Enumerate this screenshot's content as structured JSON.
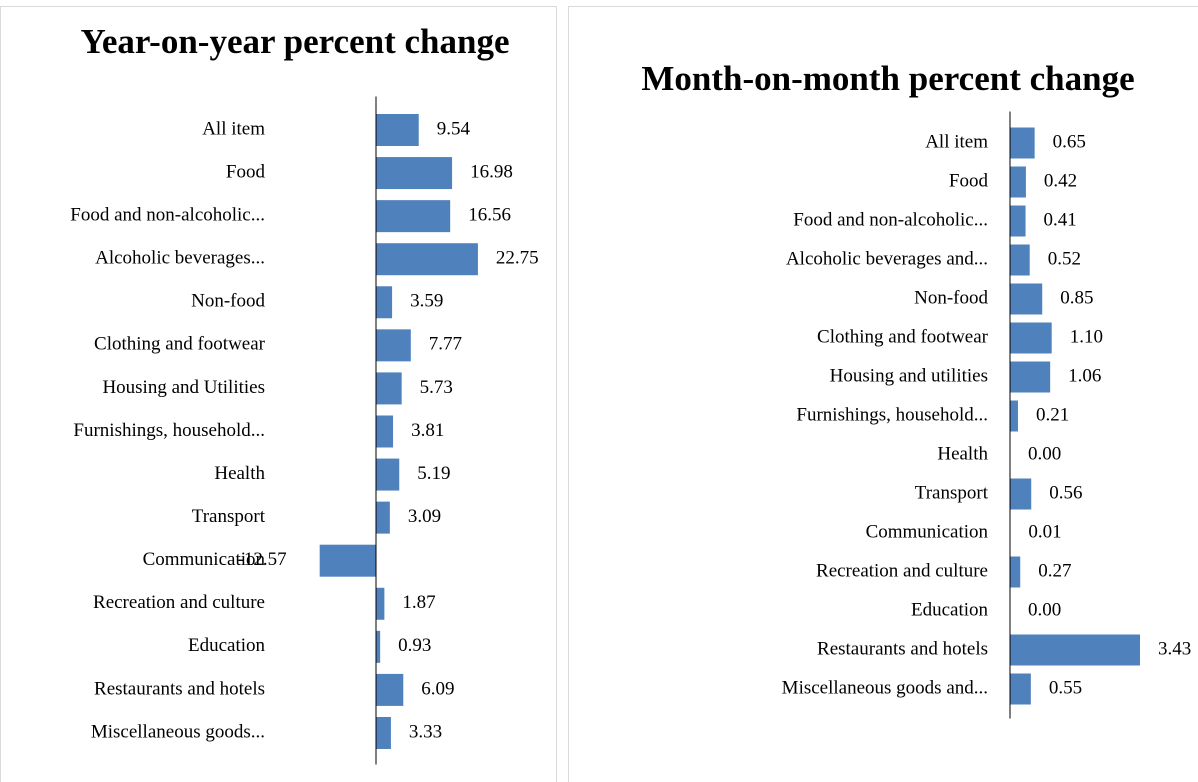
{
  "chart_data": [
    {
      "type": "hbar",
      "title": "Year-on-year percent change",
      "categories": [
        "All item",
        "Food",
        "Food and non-alcoholic...",
        "Alcoholic beverages...",
        "Non-food",
        "Clothing and footwear",
        "Housing and Utilities",
        "Furnishings, household...",
        "Health",
        "Transport",
        "Communication",
        "Recreation and culture",
        "Education",
        "Restaurants and hotels",
        "Miscellaneous goods..."
      ],
      "values": [
        9.54,
        16.98,
        16.56,
        22.75,
        3.59,
        7.77,
        5.73,
        3.81,
        5.19,
        3.09,
        -12.57,
        1.87,
        0.93,
        6.09,
        3.33
      ],
      "color": "#4f81bd",
      "xlim": [
        -20,
        30
      ]
    },
    {
      "type": "hbar",
      "title": "Month-on-month percent change",
      "categories": [
        "All item",
        "Food",
        "Food and non-alcoholic...",
        "Alcoholic beverages and...",
        "Non-food",
        "Clothing and footwear",
        "Housing and utilities",
        "Furnishings, household...",
        "Health",
        "Transport",
        "Communication",
        "Recreation and culture",
        "Education",
        "Restaurants and hotels",
        "Miscellaneous goods and..."
      ],
      "values": [
        0.65,
        0.42,
        0.41,
        0.52,
        0.85,
        1.1,
        1.06,
        0.21,
        0,
        0.56,
        0.01,
        0.27,
        0,
        3.43,
        0.55
      ],
      "value_labels": [
        "0.65",
        "0.42",
        "0.41",
        "0.52",
        "0.85",
        "1.10",
        "1.06",
        "0.21",
        "0.00",
        "0.56",
        "0.01",
        "0.27",
        "0.00",
        "3.43",
        "0.55"
      ],
      "color": "#4f81bd",
      "xlim": [
        0,
        4
      ]
    }
  ]
}
